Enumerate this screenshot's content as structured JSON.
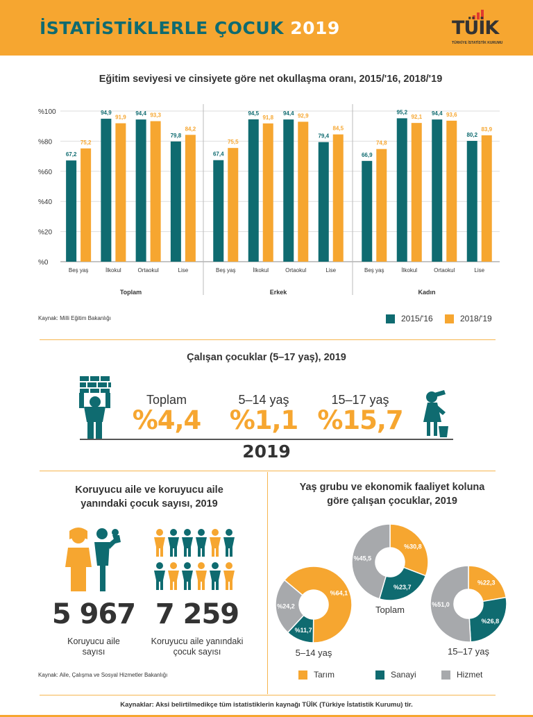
{
  "header": {
    "title": "İSTATİSTİKLERLE ÇOCUK",
    "year": "2019",
    "logo_text": "TÜİK",
    "logo_sub": "TÜRKİYE İSTATİSTİK KURUMU"
  },
  "colors": {
    "teal": "#0F6B70",
    "orange": "#F6A630",
    "grey": "#A7A9AC",
    "dark": "#333333"
  },
  "schooling": {
    "title": "Eğitim seviyesi ve cinsiyete göre net okullaşma oranı, 2015/'16, 2018/'19",
    "source": "Kaynak: Milli Eğitim Bakanlığı",
    "yticks": [
      "%100",
      "%80",
      "%60",
      "%40",
      "%20",
      "%0"
    ],
    "legend": [
      "2015/'16",
      "2018/'19"
    ]
  },
  "chart_data": [
    {
      "type": "bar",
      "title": "Toplam",
      "categories": [
        "Beş yaş",
        "İlkokul",
        "Ortaokul",
        "Lise"
      ],
      "series": [
        {
          "name": "2015/'16",
          "values": [
            67.2,
            94.9,
            94.4,
            79.8
          ],
          "labels": [
            "67,2",
            "94,9",
            "94,4",
            "79,8"
          ]
        },
        {
          "name": "2018/'19",
          "values": [
            75.2,
            91.9,
            93.3,
            84.2
          ],
          "labels": [
            "75,2",
            "91,9",
            "93,3",
            "84,2"
          ]
        }
      ],
      "ylim": [
        0,
        100
      ]
    },
    {
      "type": "bar",
      "title": "Erkek",
      "categories": [
        "Beş yaş",
        "İlkokul",
        "Ortaokul",
        "Lise"
      ],
      "series": [
        {
          "name": "2015/'16",
          "values": [
            67.4,
            94.5,
            94.4,
            79.4
          ],
          "labels": [
            "67,4",
            "94,5",
            "94,4",
            "79,4"
          ]
        },
        {
          "name": "2018/'19",
          "values": [
            75.5,
            91.8,
            92.9,
            84.5
          ],
          "labels": [
            "75,5",
            "91,8",
            "92,9",
            "84,5"
          ]
        }
      ],
      "ylim": [
        0,
        100
      ]
    },
    {
      "type": "bar",
      "title": "Kadın",
      "categories": [
        "Beş yaş",
        "İlkokul",
        "Ortaokul",
        "Lise"
      ],
      "series": [
        {
          "name": "2015/'16",
          "values": [
            66.9,
            95.2,
            94.4,
            80.2
          ],
          "labels": [
            "66,9",
            "95,2",
            "94,4",
            "80,2"
          ]
        },
        {
          "name": "2018/'19",
          "values": [
            74.8,
            92.1,
            93.6,
            83.9
          ],
          "labels": [
            "74,8",
            "92,1",
            "93,6",
            "83,9"
          ]
        }
      ],
      "ylim": [
        0,
        100
      ]
    },
    {
      "type": "pie",
      "title": "Toplam",
      "categories": [
        "Tarım",
        "Sanayi",
        "Hizmet"
      ],
      "values": [
        30.8,
        23.7,
        45.5
      ],
      "labels": [
        "%30,8",
        "%23,7",
        "%45,5"
      ]
    },
    {
      "type": "pie",
      "title": "5–14 yaş",
      "categories": [
        "Tarım",
        "Sanayi",
        "Hizmet"
      ],
      "values": [
        64.1,
        11.7,
        24.2
      ],
      "labels": [
        "%64,1",
        "%11,7",
        "%24,2"
      ]
    },
    {
      "type": "pie",
      "title": "15–17 yaş",
      "categories": [
        "Tarım",
        "Sanayi",
        "Hizmet"
      ],
      "values": [
        22.3,
        26.8,
        51.0
      ],
      "labels": [
        "%22,3",
        "%26,8",
        "%51,0"
      ]
    }
  ],
  "working": {
    "title": "Çalışan çocuklar (5–17 yaş), 2019",
    "stats": [
      {
        "label": "Toplam",
        "value": "%4,4"
      },
      {
        "label": "5–14 yaş",
        "value": "%1,1"
      },
      {
        "label": "15–17 yaş",
        "value": "%15,7"
      }
    ],
    "year": "2019"
  },
  "foster": {
    "title_line1": "Koruyucu aile ve koruyucu aile",
    "title_line2": "yanındaki çocuk sayısı, 2019",
    "families": "5 967",
    "families_label1": "Koruyucu aile",
    "families_label2": "sayısı",
    "children": "7 259",
    "children_label1": "Koruyucu aile yanındaki",
    "children_label2": "çocuk sayısı",
    "source": "Kaynak: Aile, Çalışma ve Sosyal Hizmetler Bakanlığı"
  },
  "econ": {
    "title_line1": "Yaş grubu ve ekonomik faaliyet koluna",
    "title_line2": "göre çalışan çocuklar, 2019",
    "legend": [
      "Tarım",
      "Sanayi",
      "Hizmet"
    ]
  },
  "footer": {
    "text": "Kaynaklar: Aksi belirtilmedikçe tüm istatistiklerin kaynağı TÜİK (Türkiye İstatistik Kurumu) tir."
  }
}
